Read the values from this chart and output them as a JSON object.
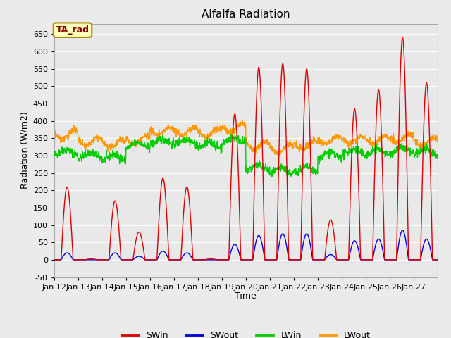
{
  "title": "Alfalfa Radiation",
  "xlabel": "Time",
  "ylabel": "Radiation (W/m2)",
  "ylim": [
    -50,
    680
  ],
  "background_color": "#ebebeb",
  "plot_bg_color": "#e8e8e8",
  "legend_items": [
    "SWin",
    "SWout",
    "LWin",
    "LWout"
  ],
  "legend_colors": [
    "#dd0000",
    "#0000cc",
    "#00cc00",
    "#ff9900"
  ],
  "annotation_text": "TA_rad",
  "annotation_bg": "#ffffbb",
  "annotation_border": "#aa8800",
  "line_colors": {
    "SWin": "#dd0000",
    "SWout": "#0000dd",
    "LWin": "#00cc00",
    "LWout": "#ff9900"
  },
  "SWin_peaks": [
    210,
    3,
    170,
    80,
    235,
    210,
    3,
    420,
    555,
    565,
    550,
    115,
    435,
    490,
    640,
    510
  ],
  "SWout_peaks": [
    20,
    0,
    20,
    10,
    25,
    20,
    0,
    45,
    70,
    75,
    75,
    15,
    55,
    60,
    85,
    60
  ],
  "n_days": 16,
  "start_day": 12
}
